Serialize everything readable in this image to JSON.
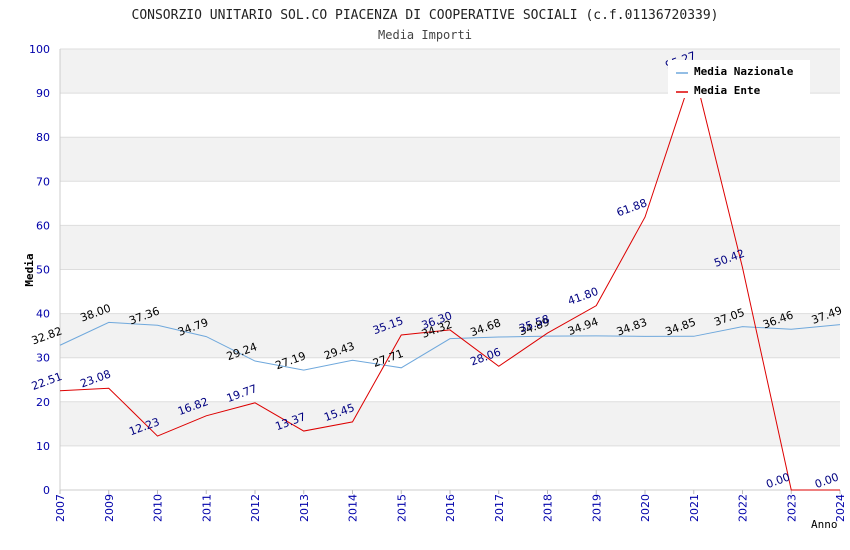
{
  "chart_data": {
    "type": "line",
    "title": "CONSORZIO UNITARIO SOL.CO PIACENZA DI COOPERATIVE SOCIALI (c.f.01136720339)",
    "subtitle": "Media Importi",
    "xlabel": "Anno",
    "ylabel": "Media",
    "ylim": [
      0,
      100
    ],
    "yticks": [
      0,
      10,
      20,
      30,
      40,
      50,
      60,
      70,
      80,
      90,
      100
    ],
    "categories": [
      "2007",
      "2009",
      "2010",
      "2011",
      "2012",
      "2013",
      "2014",
      "2015",
      "2016",
      "2017",
      "2018",
      "2019",
      "2020",
      "2021",
      "2022",
      "2023",
      "2024"
    ],
    "series": [
      {
        "name": "Media Nazionale",
        "color": "#6fa8dc",
        "label_color": "#000000",
        "values": [
          32.82,
          38.0,
          37.36,
          34.79,
          29.24,
          27.19,
          29.43,
          27.71,
          34.32,
          34.68,
          34.89,
          34.94,
          34.83,
          34.85,
          37.05,
          36.46,
          37.49
        ],
        "labels": [
          "32.82",
          "38.00",
          "37.36",
          "34.79",
          "29.24",
          "27.19",
          "29.43",
          "27.71",
          "34.32",
          "34.68",
          "34.89",
          "34.94",
          "34.83",
          "34.85",
          "37.05",
          "36.46",
          "37.49"
        ]
      },
      {
        "name": "Media Ente",
        "color": "#dd0000",
        "label_color": "#000080",
        "values": [
          22.51,
          23.08,
          12.23,
          16.82,
          19.77,
          13.37,
          15.45,
          35.15,
          36.3,
          28.06,
          35.58,
          41.8,
          61.88,
          95.27,
          50.42,
          0.0,
          0.0
        ],
        "labels": [
          "22.51",
          "23.08",
          "12.23",
          "16.82",
          "19.77",
          "13.37",
          "15.45",
          "35.15",
          "36.30",
          "28.06",
          "35.58",
          "41.80",
          "61.88",
          "95.27",
          "50.42",
          "0.00",
          "0.00"
        ]
      }
    ],
    "legend": "top-right",
    "grid": true
  },
  "colors": {
    "band_dark": "#f2f2f2",
    "band_light": "#ffffff",
    "grid": "#dddddd",
    "axis_text": "#0000aa",
    "text": "#333333"
  }
}
